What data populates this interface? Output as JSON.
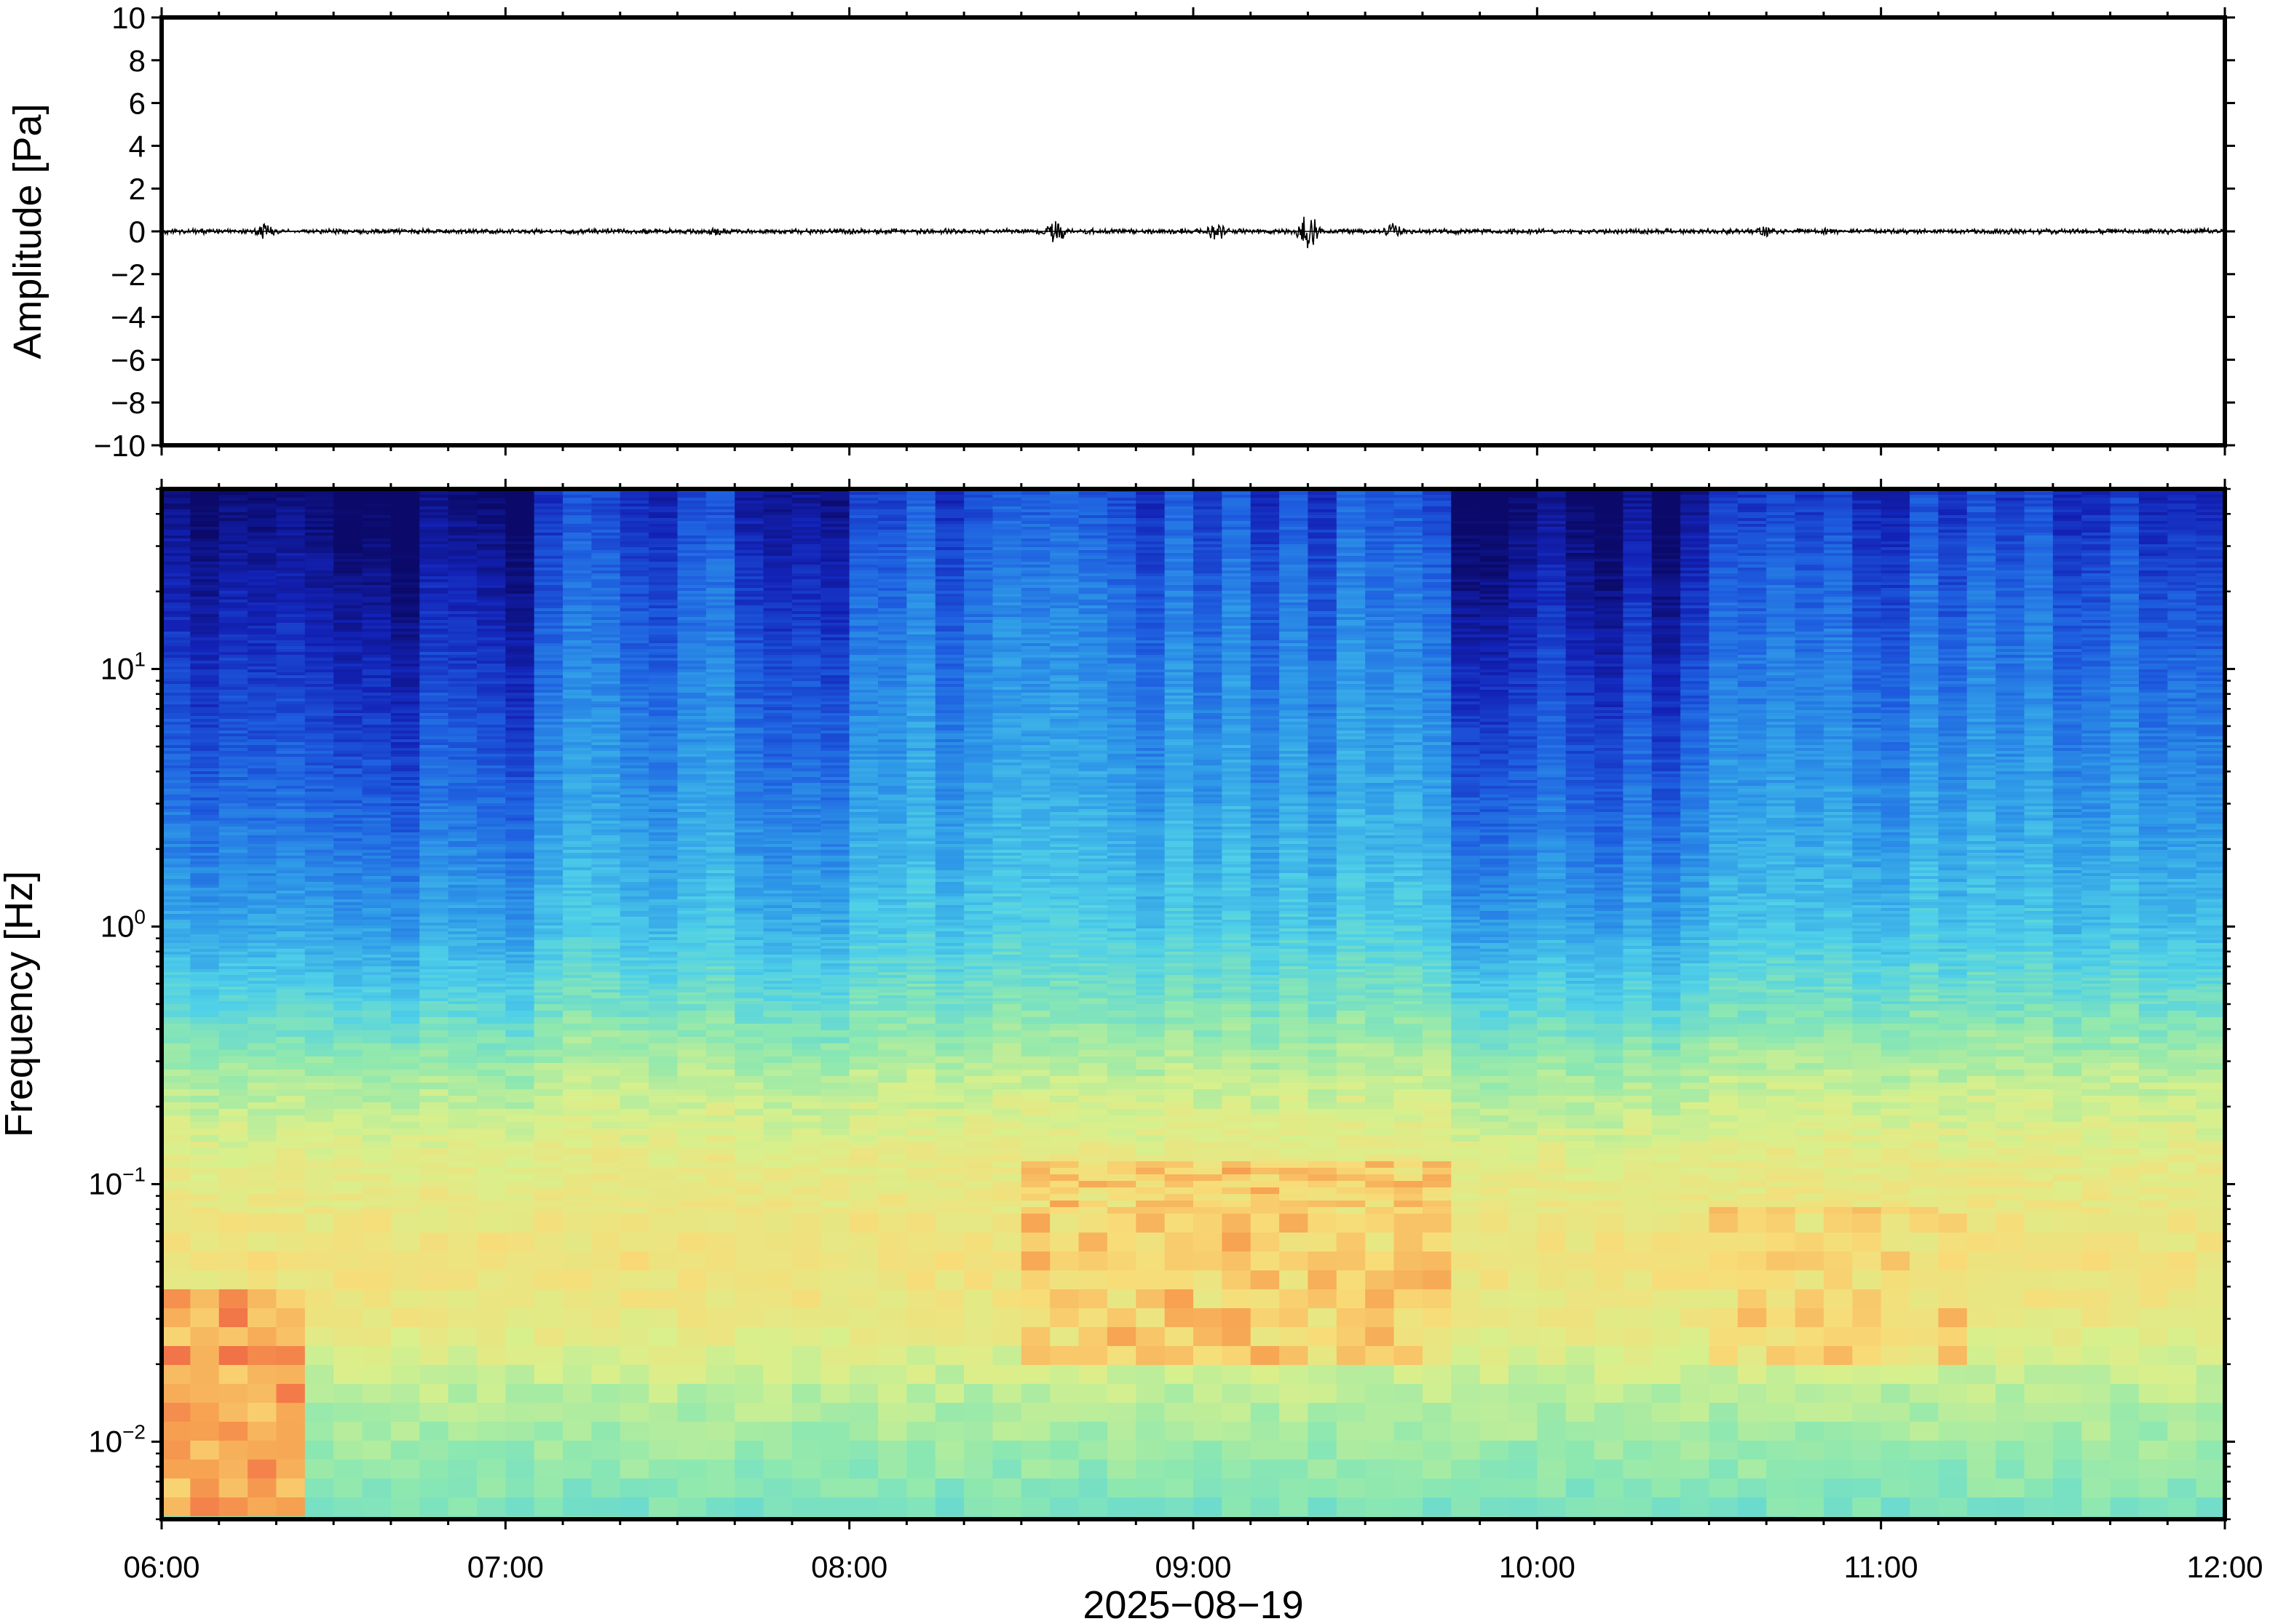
{
  "chart_data": [
    {
      "type": "line",
      "panel": "waveform",
      "xlabel": "",
      "ylabel": "Amplitude [Pa]",
      "xlim": [
        "06:00",
        "12:00"
      ],
      "ylim": [
        -10,
        10
      ],
      "y_ticks": [
        10,
        8,
        6,
        4,
        2,
        0,
        -2,
        -4,
        -6,
        -8,
        -10
      ],
      "y_tick_labels": [
        "10",
        "8",
        "6",
        "4",
        "2",
        "0",
        "−2",
        "−4",
        "−6",
        "−8",
        "−10"
      ],
      "baseline": 0,
      "noise_amplitude": 0.1,
      "bursts": [
        {
          "time": "06:18",
          "amplitude": 0.5
        },
        {
          "time": "07:37",
          "amplitude": 0.3
        },
        {
          "time": "08:36",
          "amplitude": 0.8
        },
        {
          "time": "09:04",
          "amplitude": 0.6
        },
        {
          "time": "09:20",
          "amplitude": 1.4
        },
        {
          "time": "09:35",
          "amplitude": 0.5
        },
        {
          "time": "10:40",
          "amplitude": 0.4
        },
        {
          "time": "10:51",
          "amplitude": 0.3
        }
      ],
      "line_color": "#000000"
    },
    {
      "type": "heatmap",
      "panel": "spectrogram",
      "xlabel": "2025−08−19",
      "ylabel": "Frequency [Hz]",
      "xlim": [
        "06:00",
        "12:00"
      ],
      "ylim": [
        0.005,
        50
      ],
      "y_scale": "log",
      "x_ticks": [
        "06:00",
        "07:00",
        "08:00",
        "09:00",
        "10:00",
        "11:00",
        "12:00"
      ],
      "y_ticks": [
        0.01,
        0.1,
        1,
        10
      ],
      "y_tick_labels": [
        {
          "base": "10",
          "exp": "−2"
        },
        {
          "base": "10",
          "exp": "−1"
        },
        {
          "base": "10",
          "exp": "0"
        },
        {
          "base": "10",
          "exp": "1"
        }
      ],
      "colormap": [
        "#0b0a6a",
        "#1323b8",
        "#1e5fe0",
        "#2f9be8",
        "#4fd0e8",
        "#8de8b0",
        "#d8f08c",
        "#f8dc78",
        "#f7a452",
        "#ee5a42"
      ],
      "colorscale_range": [
        0,
        1
      ],
      "bands": [
        {
          "freq": 50,
          "level": 0.04
        },
        {
          "freq": 30,
          "level": 0.09
        },
        {
          "freq": 10,
          "level": 0.18
        },
        {
          "freq": 3,
          "level": 0.27
        },
        {
          "freq": 1,
          "level": 0.37
        },
        {
          "freq": 0.5,
          "level": 0.48
        },
        {
          "freq": 0.25,
          "level": 0.61
        },
        {
          "freq": 0.12,
          "level": 0.7
        },
        {
          "freq": 0.05,
          "level": 0.75
        },
        {
          "freq": 0.03,
          "level": 0.72
        },
        {
          "freq": 0.015,
          "level": 0.62
        },
        {
          "freq": 0.005,
          "level": 0.52
        }
      ],
      "broadband_activity": [
        {
          "start": "06:00",
          "end": "07:05",
          "level": -0.06
        },
        {
          "start": "07:05",
          "end": "07:40",
          "level": 0.1
        },
        {
          "start": "07:40",
          "end": "08:00",
          "level": 0.04
        },
        {
          "start": "08:00",
          "end": "09:45",
          "level": 0.13
        },
        {
          "start": "09:45",
          "end": "10:30",
          "level": -0.04
        },
        {
          "start": "10:30",
          "end": "12:00",
          "level": 0.09
        }
      ],
      "low_frequency_energy": [
        {
          "start": "06:00",
          "end": "06:25",
          "freq_low": 0.005,
          "freq_high": 0.04,
          "level": 0.96
        },
        {
          "start": "08:30",
          "end": "09:45",
          "freq_low": 0.02,
          "freq_high": 0.12,
          "level": 0.87
        },
        {
          "start": "10:30",
          "end": "11:15",
          "freq_low": 0.02,
          "freq_high": 0.08,
          "level": 0.84
        }
      ]
    }
  ]
}
